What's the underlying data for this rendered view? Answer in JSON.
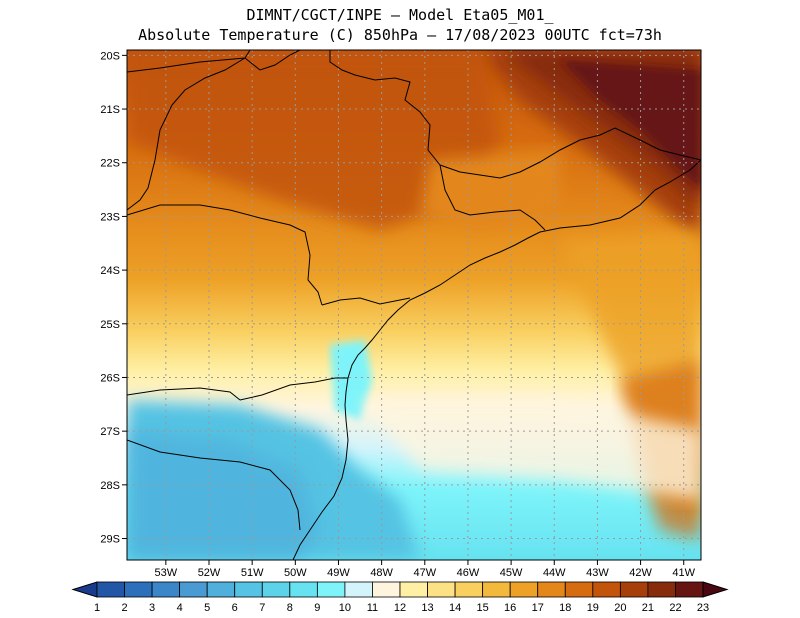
{
  "header": {
    "line1": "DIMNT/CGCT/INPE –  Model Eta05_M01_",
    "line2": "Absolute Temperature (C) 850hPa –  17/08/2023 00UTC fct=73h"
  },
  "map": {
    "lat_labels": [
      "20S",
      "21S",
      "22S",
      "23S",
      "24S",
      "25S",
      "26S",
      "27S",
      "28S",
      "29S"
    ],
    "lon_labels": [
      "53W",
      "52W",
      "51W",
      "50W",
      "49W",
      "48W",
      "47W",
      "46W",
      "45W",
      "44W",
      "43W",
      "42W",
      "41W"
    ],
    "lat_range": [
      -29.4,
      -19.9
    ],
    "lon_range": [
      -53.9,
      -40.6
    ],
    "grid": true
  },
  "colorbar": {
    "labels": [
      "1",
      "2",
      "3",
      "4",
      "5",
      "6",
      "7",
      "8",
      "9",
      "10",
      "11",
      "12",
      "13",
      "14",
      "15",
      "16",
      "17",
      "18",
      "19",
      "20",
      "21",
      "22",
      "23"
    ],
    "colors": [
      "#1a3a8c",
      "#2257a8",
      "#2c70bb",
      "#3a86c8",
      "#4a9bd3",
      "#4fb0dc",
      "#55c3e3",
      "#5dd3ea",
      "#66e2f0",
      "#7ef4fa",
      "#d4f4fb",
      "#fff5de",
      "#fff0a6",
      "#fde285",
      "#f9cf5f",
      "#f3b93d",
      "#eda127",
      "#e3871a",
      "#d66c10",
      "#c2540c",
      "#a63f0a",
      "#862b0b",
      "#661512",
      "#4a0812"
    ]
  }
}
